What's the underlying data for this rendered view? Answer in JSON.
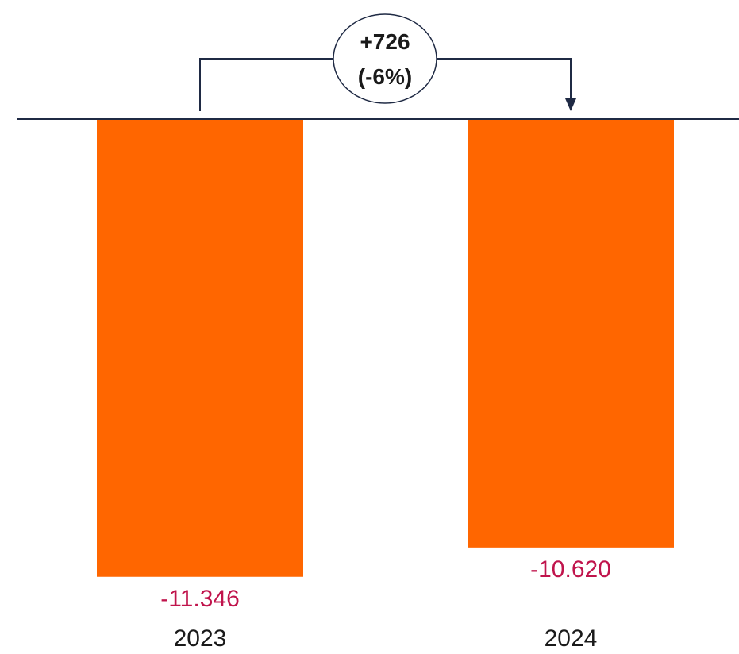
{
  "chart_data": {
    "type": "bar",
    "categories": [
      "2023",
      "2024"
    ],
    "values": [
      -11346,
      -10620
    ],
    "value_labels": [
      "-11.346",
      "-10.620"
    ],
    "ylim": [
      -12000,
      0
    ],
    "grid": false,
    "legend": "none",
    "title": "",
    "xlabel": "",
    "ylabel": "",
    "annotation": {
      "from": "2023",
      "to": "2024",
      "delta_label": "+726",
      "percent_label": "(-6%)"
    },
    "colors": {
      "bar": "#FF6600",
      "value_label": "#C0144C",
      "axis": "#1F2A44",
      "connector": "#1F2A44",
      "text": "#1a1a1a"
    }
  }
}
